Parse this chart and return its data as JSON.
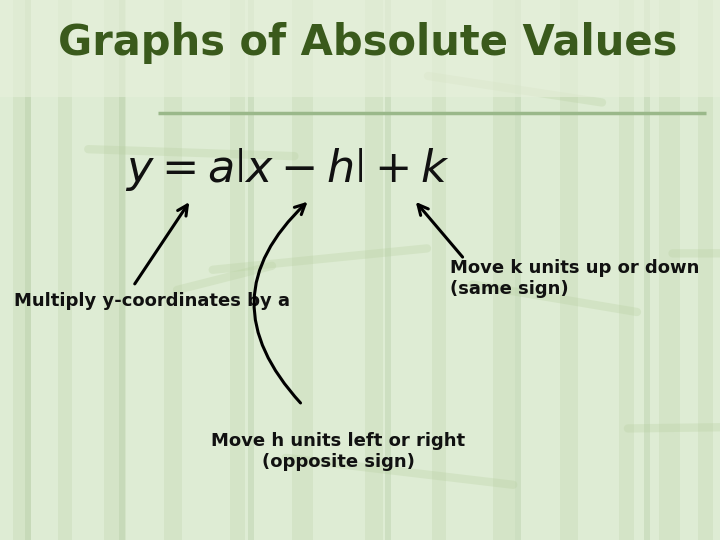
{
  "title": "Graphs of Absolute Values",
  "title_color": "#3a5a1c",
  "title_fontsize": 30,
  "bg_color": "#deecd4",
  "separator_color": "#9ab88a",
  "formula_color": "#111111",
  "formula_fontsize": 32,
  "annotation_color": "#111111",
  "annotation_fontsize": 13,
  "label_multiply": "Multiply y-coordinates by a",
  "label_k": "Move k units up or down\n(same sign)",
  "label_h": "Move h units left or right\n(opposite sign)"
}
